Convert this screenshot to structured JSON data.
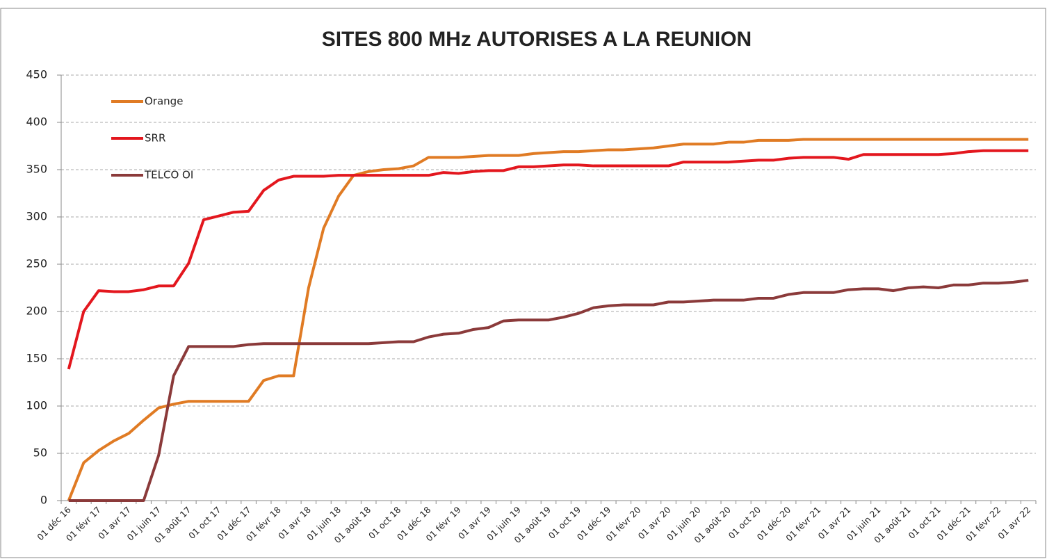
{
  "chart_data": {
    "type": "line",
    "title": "SITES 800 MHz AUTORISES A LA REUNION",
    "categories": [
      "01 déc 16",
      null,
      "01 févr 17",
      null,
      "01 avr 17",
      null,
      "01 juin 17",
      null,
      "01 août 17",
      null,
      "01 oct 17",
      null,
      "01 déc 17",
      null,
      "01 févr 18",
      null,
      "01 avr 18",
      null,
      "01 juin 18",
      null,
      "01 août 18",
      null,
      "01 oct 18",
      null,
      "01 déc 18",
      null,
      "01 févr 19",
      null,
      "01 avr 19",
      null,
      "01 juin 19",
      null,
      "01 août 19",
      null,
      "01 oct 19",
      null,
      "01 déc 19",
      null,
      "01 févr 20",
      null,
      "01 avr 20",
      null,
      "01 juin 20",
      null,
      "01 août 20",
      null,
      "01 oct 20",
      null,
      "01 déc 20",
      null,
      "01 févr 21",
      null,
      "01 avr 21",
      null,
      "01 juin 21",
      null,
      "01 août 21",
      null,
      "01 oct 21",
      null,
      "01 déc 21",
      null,
      "01 févr 22",
      null,
      "01 avr 22"
    ],
    "series": [
      {
        "name": "Orange",
        "color": "#e07b24",
        "values": [
          0,
          40,
          53,
          63,
          71,
          85,
          98,
          102,
          105,
          105,
          105,
          105,
          105,
          127,
          132,
          132,
          225,
          288,
          322,
          344,
          348,
          350,
          351,
          354,
          363,
          363,
          363,
          364,
          365,
          365,
          365,
          367,
          368,
          369,
          369,
          370,
          371,
          371,
          372,
          373,
          375,
          377,
          377,
          377,
          379,
          379,
          381,
          381,
          381,
          382,
          382,
          382,
          382,
          382,
          382,
          382,
          382,
          382,
          382,
          382,
          382,
          382,
          382,
          382,
          382
        ]
      },
      {
        "name": "SRR",
        "color": "#e3171e",
        "values": [
          139,
          200,
          222,
          221,
          221,
          223,
          227,
          227,
          251,
          297,
          301,
          305,
          306,
          328,
          339,
          343,
          343,
          343,
          344,
          344,
          344,
          344,
          344,
          344,
          344,
          347,
          346,
          348,
          349,
          349,
          353,
          353,
          354,
          355,
          355,
          354,
          354,
          354,
          354,
          354,
          354,
          358,
          358,
          358,
          358,
          359,
          360,
          360,
          362,
          363,
          363,
          363,
          361,
          366,
          366,
          366,
          366,
          366,
          366,
          367,
          369,
          370,
          370,
          370,
          370
        ]
      },
      {
        "name": "TELCO OI",
        "color": "#8b3a3a",
        "values": [
          0,
          0,
          0,
          0,
          0,
          0,
          48,
          132,
          163,
          163,
          163,
          163,
          165,
          166,
          166,
          166,
          166,
          166,
          166,
          166,
          166,
          167,
          168,
          168,
          173,
          176,
          177,
          181,
          183,
          190,
          191,
          191,
          191,
          194,
          198,
          204,
          206,
          207,
          207,
          207,
          210,
          210,
          211,
          212,
          212,
          212,
          214,
          214,
          218,
          220,
          220,
          220,
          223,
          224,
          224,
          222,
          225,
          226,
          225,
          228,
          228,
          230,
          230,
          231,
          233
        ]
      }
    ],
    "ylim": [
      0,
      450
    ],
    "yticks": [
      0,
      50,
      100,
      150,
      200,
      250,
      300,
      350,
      400,
      450
    ],
    "grid": true,
    "legend": "top-left"
  }
}
